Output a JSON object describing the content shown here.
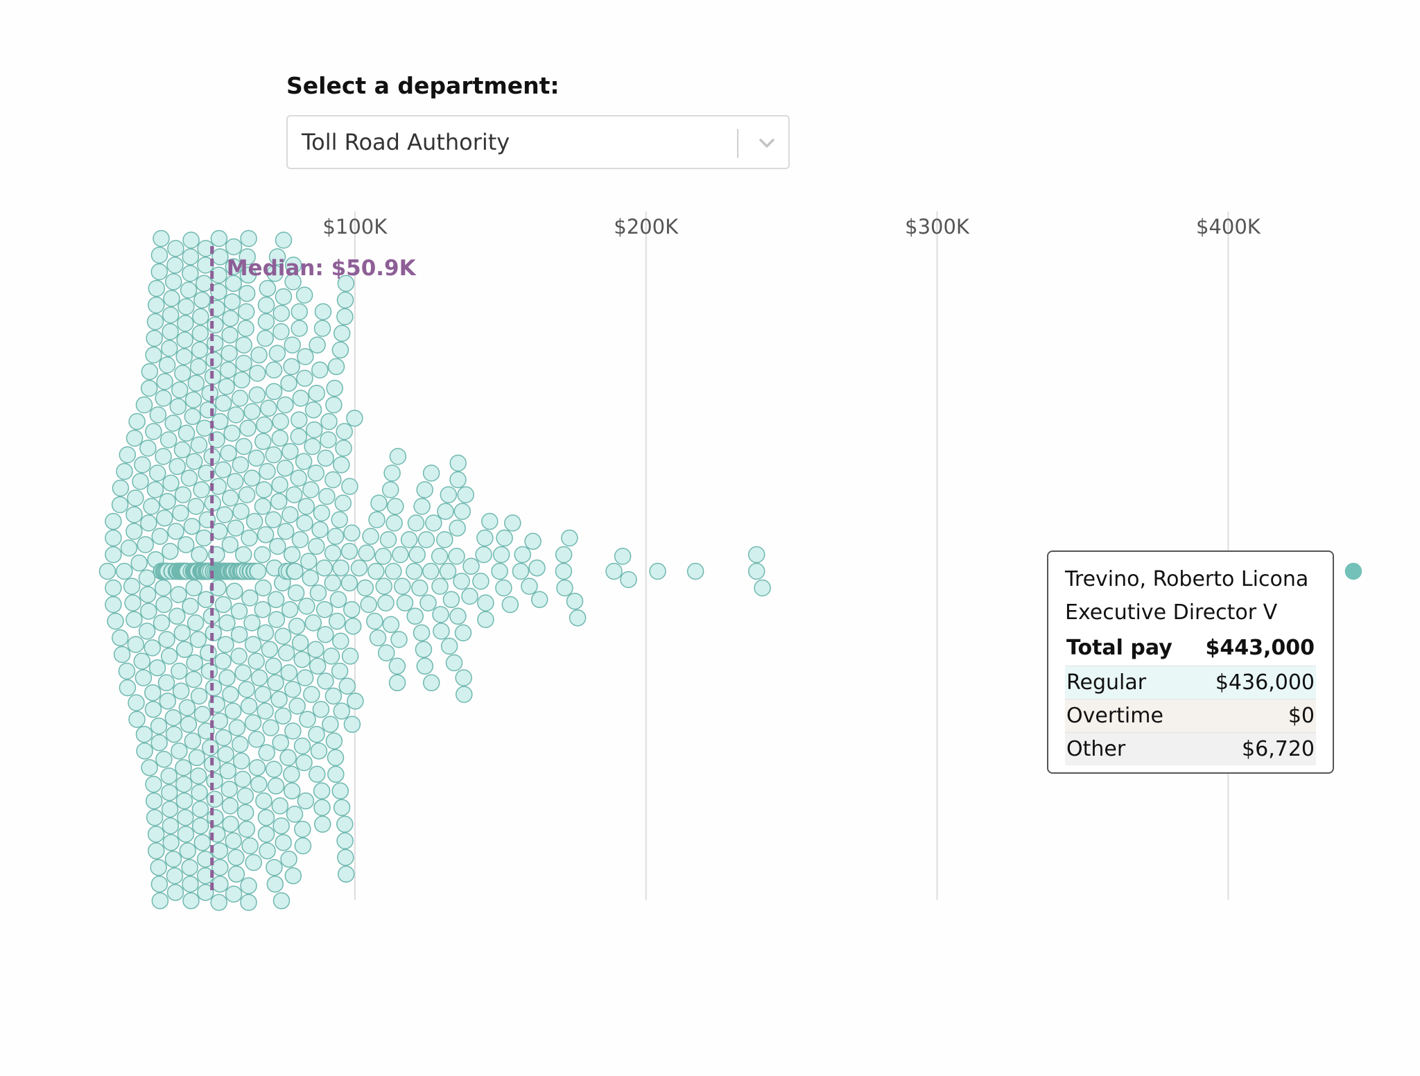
{
  "controls": {
    "select_label": "Select a department:",
    "selected_department": "Toll Road Authority"
  },
  "colors": {
    "dot_fill": "#cdeeeb",
    "dot_stroke": "#6fb8b0",
    "highlight_dot": "#74c1b9",
    "median_line": "#8e5f97",
    "grid": "#dddddd",
    "tick_text": "#555555"
  },
  "chart_data": {
    "type": "scatter",
    "subtype": "beeswarm",
    "title": "",
    "x_axis": {
      "min": 0,
      "max": 450000,
      "ticks": [
        100000,
        200000,
        300000,
        400000
      ],
      "tick_labels": [
        "$100K",
        "$200K",
        "$300K",
        "$400K"
      ],
      "position": "top",
      "grid": true
    },
    "median": {
      "value": 50900,
      "label": "Median: $50.9K"
    },
    "outlier_values": [
      15000,
      189000,
      192000,
      194000,
      204000,
      217000,
      238000,
      238000,
      240000
    ],
    "highlighted": {
      "value": 443000
    }
  },
  "tooltip": {
    "name": "Trevino, Roberto Licona",
    "title": "Executive Director V",
    "total_label": "Total pay",
    "total_value": "$443,000",
    "rows": [
      {
        "label": "Regular",
        "value": "$436,000"
      },
      {
        "label": "Overtime",
        "value": "$0"
      },
      {
        "label": "Other",
        "value": "$6,720"
      }
    ]
  }
}
